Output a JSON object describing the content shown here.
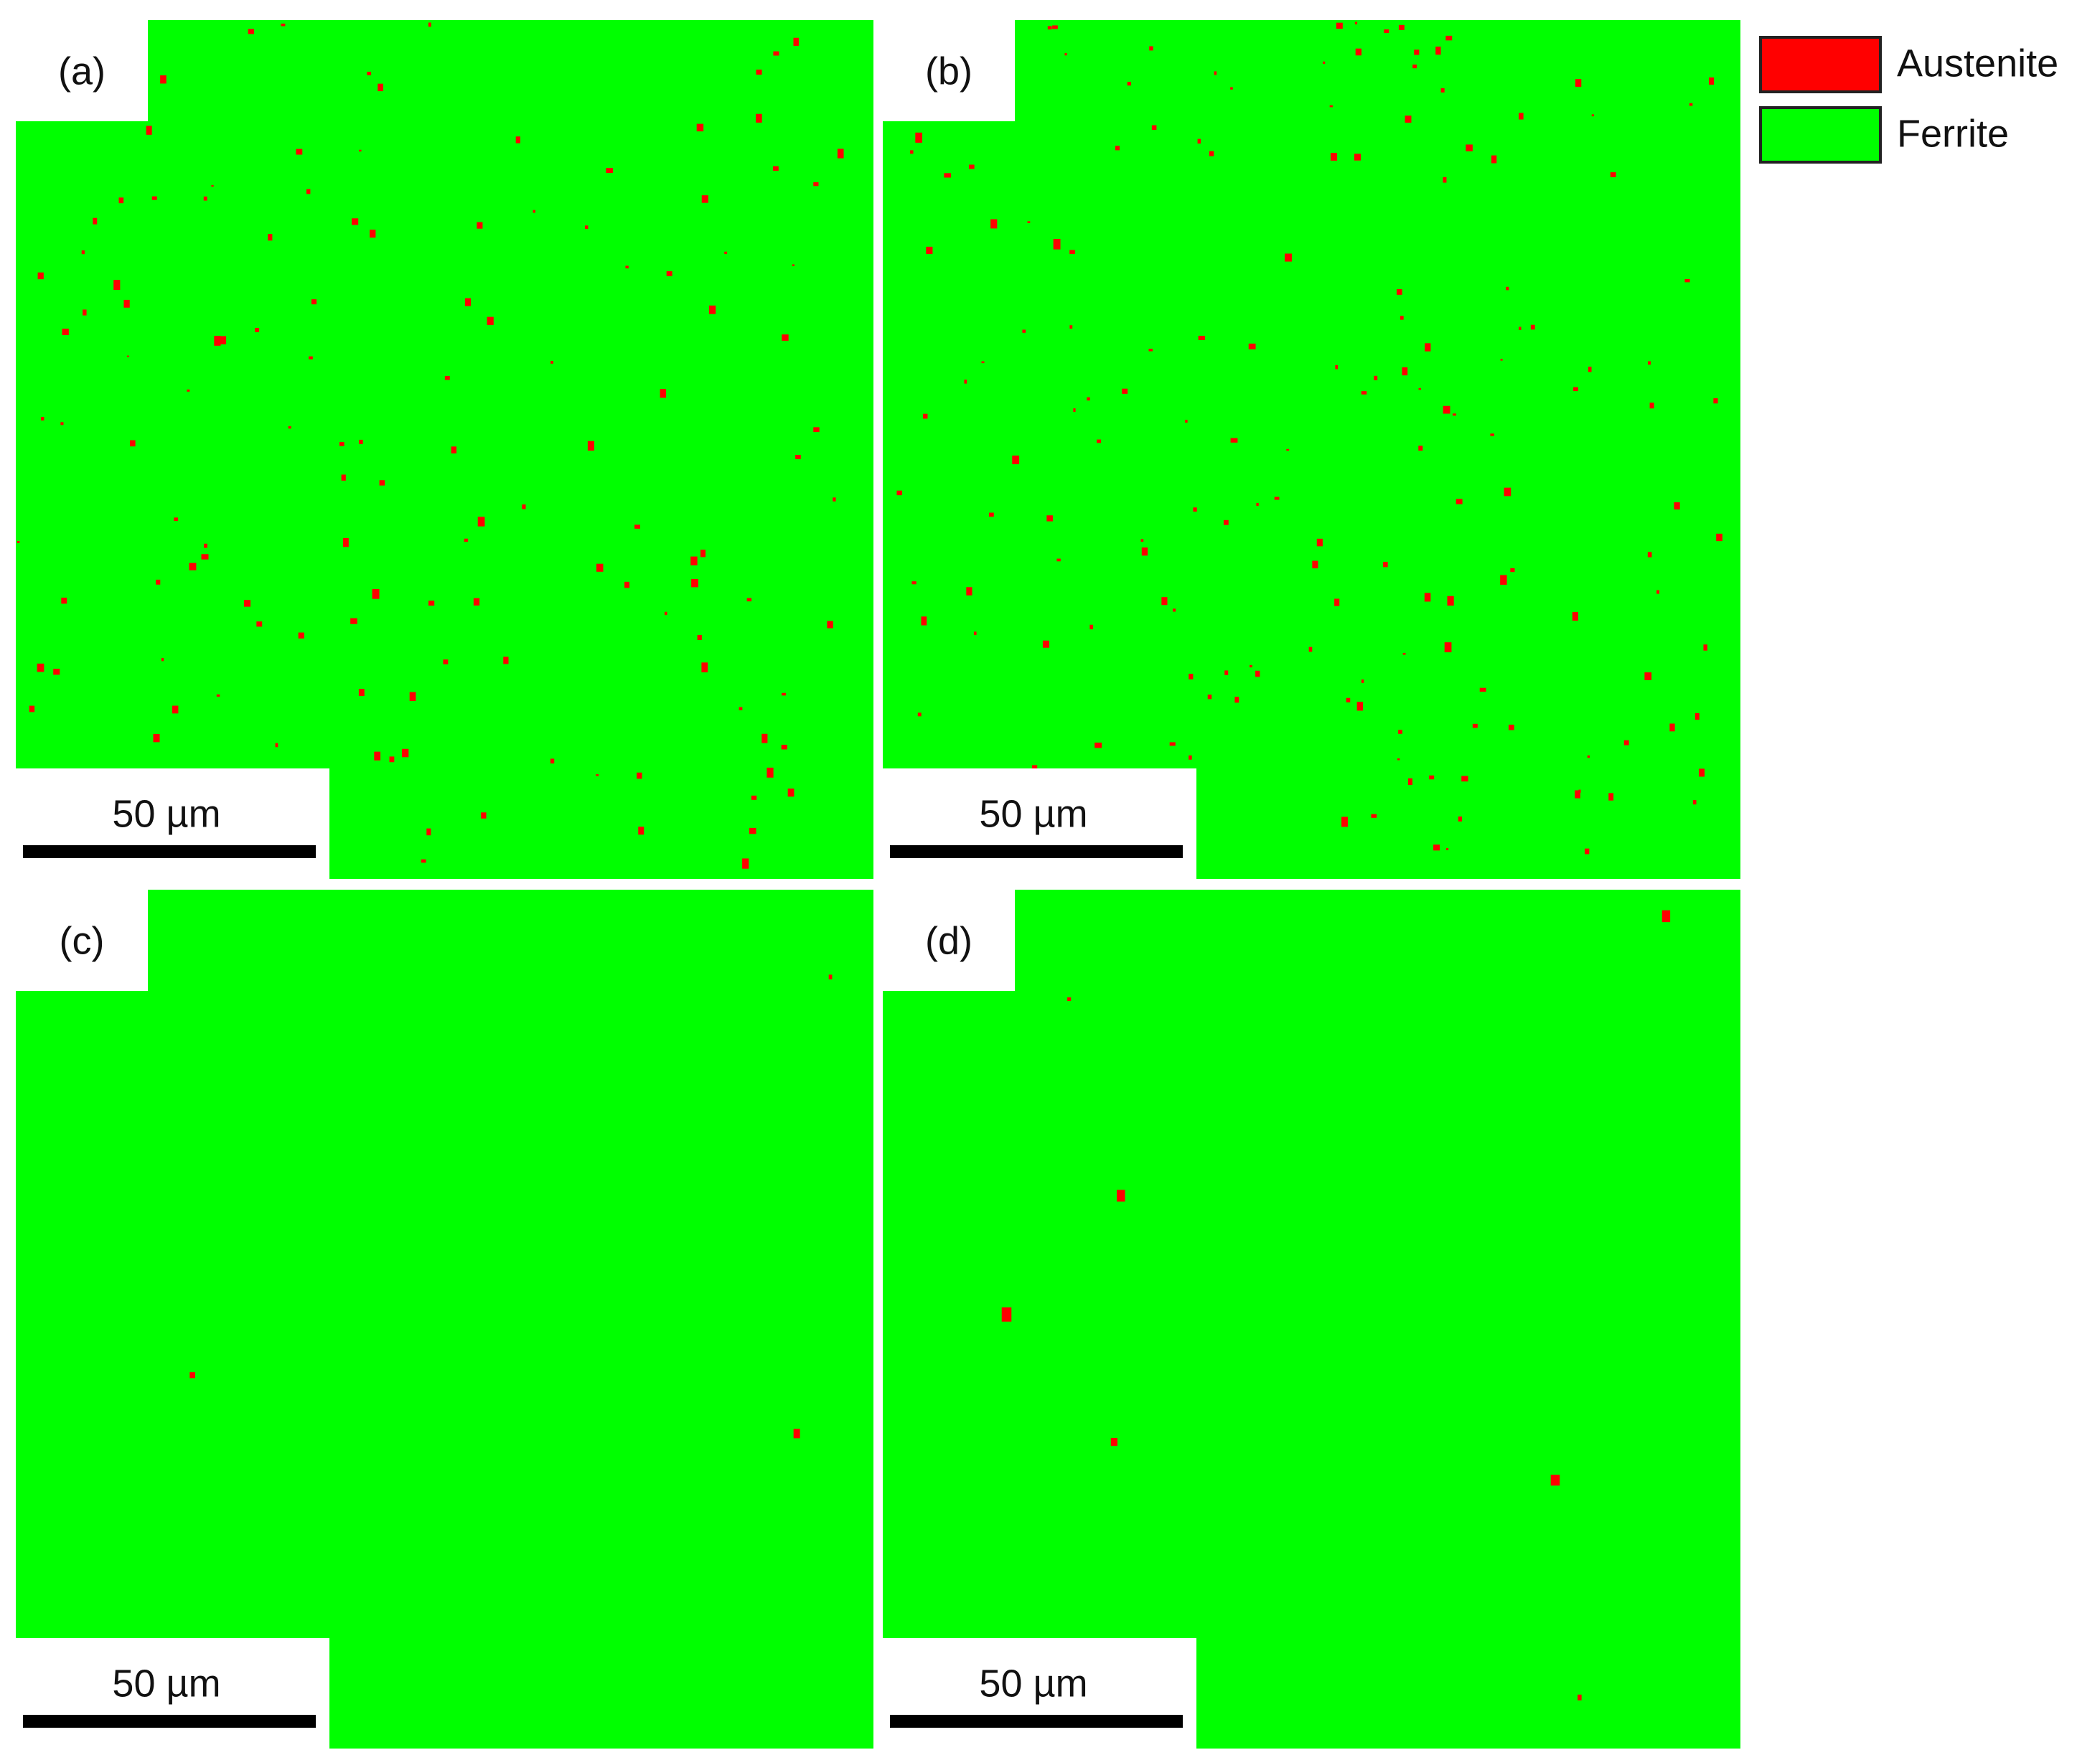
{
  "panels": [
    {
      "label": "(a)",
      "scale_bar": "50 µm"
    },
    {
      "label": "(b)",
      "scale_bar": "50 µm"
    },
    {
      "label": "(c)",
      "scale_bar": "50 µm"
    },
    {
      "label": "(d)",
      "scale_bar": "50 µm"
    }
  ],
  "legend": [
    {
      "name": "Austenite",
      "color": "#ff0000"
    },
    {
      "name": "Ferrite",
      "color": "#00ff00"
    }
  ]
}
